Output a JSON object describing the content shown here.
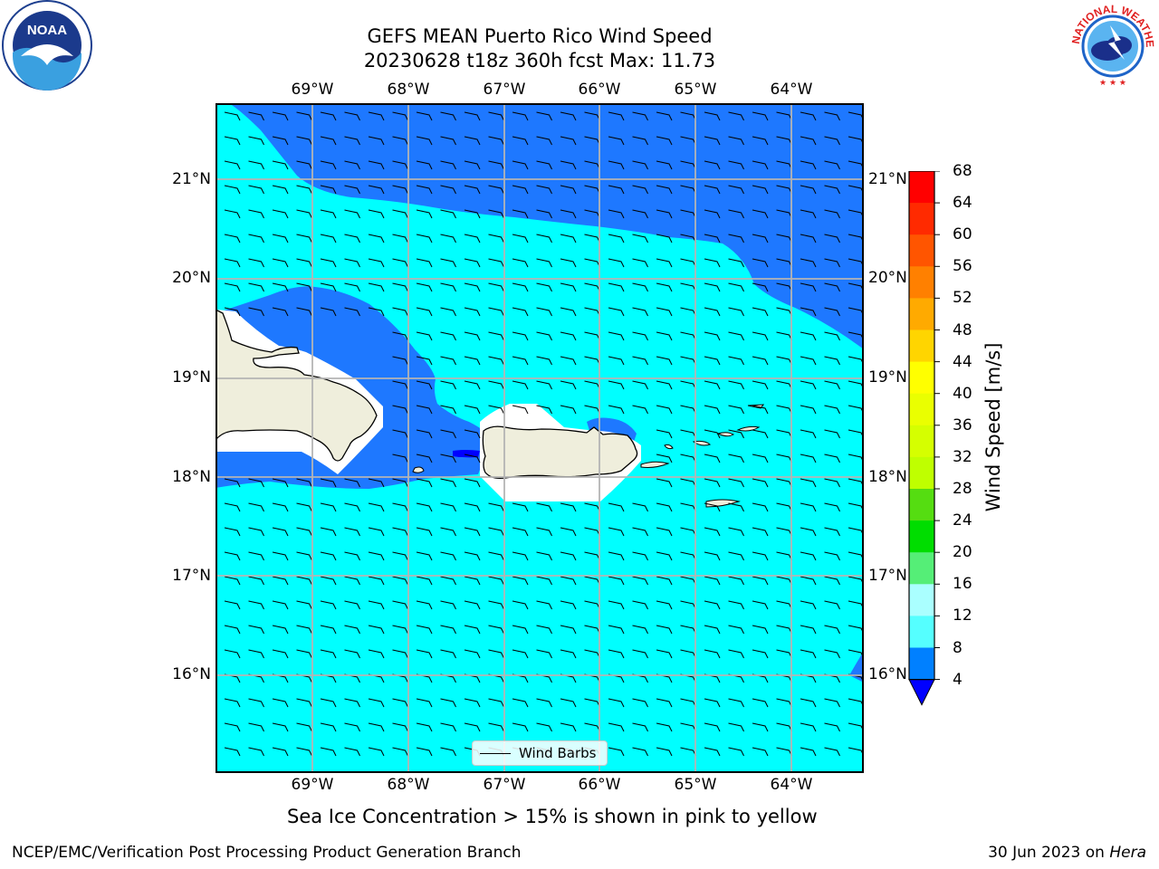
{
  "title": {
    "line1": "GEFS MEAN Puerto Rico Wind Speed",
    "line2": "20230628 t18z 360h fcst   Max: 11.73"
  },
  "axes": {
    "longitude_ticks": [
      "69°W",
      "68°W",
      "67°W",
      "66°W",
      "65°W",
      "64°W"
    ],
    "latitude_ticks": [
      "21°N",
      "20°N",
      "19°N",
      "18°N",
      "17°N",
      "16°N"
    ]
  },
  "legend": {
    "label": "Wind Barbs"
  },
  "colorbar": {
    "title": "Wind Speed [m/s]",
    "ticks": [
      "68",
      "64",
      "60",
      "56",
      "52",
      "48",
      "44",
      "40",
      "36",
      "32",
      "28",
      "24",
      "20",
      "16",
      "12",
      "8",
      "4"
    ],
    "colors": [
      "#ff0000",
      "#ff2a00",
      "#ff5500",
      "#ff8000",
      "#ffaa00",
      "#ffd500",
      "#ffff00",
      "#eaff00",
      "#d5ff00",
      "#bfff00",
      "#55dd11",
      "#00dd00",
      "#55ee77",
      "#aaffff",
      "#55ffff",
      "#00ffff",
      "#0080ff"
    ],
    "extend_color": "#0000ff"
  },
  "map": {
    "colors": {
      "speed_4_8": "#1e78ff",
      "speed_8_12": "#00ffff",
      "speed_below_4": "#0000ff",
      "land": "#efeedc",
      "grid": "#b4b4b4",
      "no_data": "#ffffff"
    }
  },
  "subtitle": "Sea Ice Concentration > 15% is shown in pink to yellow",
  "footer": {
    "left": "NCEP/EMC/Verification Post Processing Product Generation Branch",
    "date": "30 Jun 2023 on ",
    "machine": "Hera"
  },
  "logos": {
    "noaa_text": "NOAA",
    "nws_text": "NATIONAL WEATHER SERVICE"
  }
}
